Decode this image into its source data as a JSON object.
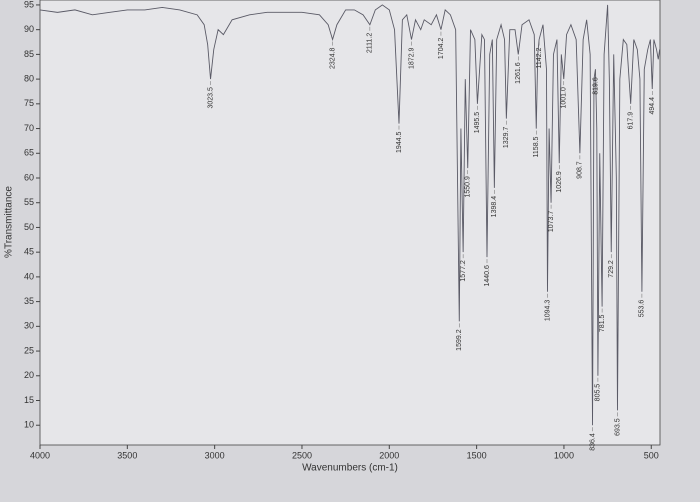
{
  "chart_data": {
    "type": "line",
    "x_label": "Wavenumbers (cm-1)",
    "y_label": "%Transmittance",
    "xlim": [
      4000,
      450
    ],
    "ylim": [
      6,
      96
    ],
    "xticks": [
      4000,
      3500,
      3000,
      2500,
      2000,
      1500,
      1000,
      500
    ],
    "yticks": [
      10,
      15,
      20,
      25,
      30,
      35,
      40,
      45,
      50,
      55,
      60,
      65,
      70,
      75,
      80,
      85,
      90,
      95
    ],
    "x": [
      4000,
      3900,
      3800,
      3700,
      3600,
      3500,
      3400,
      3300,
      3200,
      3100,
      3060,
      3040,
      3023.5,
      3005,
      2980,
      2950,
      2900,
      2800,
      2700,
      2600,
      2500,
      2400,
      2350,
      2324.8,
      2300,
      2250,
      2200,
      2150,
      2111.2,
      2080,
      2040,
      2000,
      1970,
      1944.5,
      1925,
      1900,
      1872.9,
      1850,
      1820,
      1800,
      1760,
      1730,
      1704.2,
      1680,
      1650,
      1620,
      1599.2,
      1590,
      1577.2,
      1565,
      1550.9,
      1535,
      1510,
      1495.5,
      1470,
      1455,
      1440.6,
      1425,
      1410,
      1398.4,
      1385,
      1360,
      1340,
      1329.7,
      1310,
      1280,
      1261.6,
      1240,
      1200,
      1170,
      1158.5,
      1150,
      1142.2,
      1120,
      1100,
      1094.3,
      1085,
      1073.7,
      1060,
      1040,
      1026.9,
      1015,
      1001,
      985,
      960,
      930,
      908.7,
      890,
      870,
      850,
      836.4,
      828,
      819.6,
      812,
      805.5,
      795,
      781.5,
      770,
      750,
      740,
      729.2,
      715,
      700,
      693.5,
      680,
      660,
      640,
      617.9,
      600,
      580,
      565,
      553.6,
      540,
      520,
      505,
      494.4,
      485,
      470,
      460,
      452
    ],
    "series": [
      {
        "color": "#5a5a66",
        "values": [
          94,
          93.5,
          94,
          93,
          93.5,
          94,
          94,
          94.5,
          94,
          93,
          91,
          87,
          80,
          86,
          90,
          89,
          92,
          93,
          93.5,
          93.5,
          93.5,
          93,
          91,
          88,
          91,
          94,
          94,
          93,
          91,
          94,
          95,
          94,
          90,
          71,
          92,
          93,
          88,
          92,
          90,
          92,
          91,
          93,
          90,
          94,
          93,
          90,
          31,
          70,
          45,
          80,
          62,
          90,
          88,
          75,
          89,
          88,
          44,
          85,
          88,
          58,
          88,
          91,
          88,
          72,
          90,
          90,
          85,
          91,
          92,
          89,
          70,
          85,
          88,
          91,
          82,
          37,
          70,
          55,
          85,
          88,
          63,
          85,
          80,
          89,
          91,
          88,
          65,
          88,
          92,
          85,
          10,
          80,
          82,
          70,
          20,
          65,
          34,
          85,
          95,
          80,
          45,
          85,
          60,
          13,
          80,
          88,
          87,
          75,
          88,
          86,
          80,
          37,
          82,
          86,
          88,
          78,
          88,
          86,
          84,
          86
        ]
      }
    ],
    "peaks": {
      "x": [
        3023.5,
        2324.8,
        2111.2,
        1944.5,
        1872.9,
        1704.2,
        1599.2,
        1577.2,
        1550.9,
        1495.5,
        1440.6,
        1398.4,
        1329.7,
        1261.6,
        1158.5,
        1142.2,
        1094.3,
        1073.7,
        1026.9,
        1001,
        908.7,
        836.4,
        819.6,
        805.5,
        781.5,
        729.2,
        693.5,
        617.9,
        553.6,
        494.4
      ],
      "y": [
        80,
        88,
        91,
        71,
        88,
        90,
        31,
        45,
        62,
        75,
        44,
        58,
        72,
        85,
        70,
        88,
        37,
        55,
        63,
        80,
        65,
        10,
        82,
        20,
        34,
        45,
        13,
        75,
        37,
        78
      ],
      "labels": [
        "3023.5",
        "2324.8",
        "2111.2",
        "1944.5",
        "1872.9",
        "1704.2",
        "1599.2",
        "1577.2",
        "1550.9",
        "1495.5",
        "1440.6",
        "1398.4",
        "1329.7",
        "1261.6",
        "1158.5",
        "1142.2",
        "1094.3",
        "1073.7",
        "1026.9",
        "1001.0",
        "908.7",
        "836.4",
        "819.6",
        "805.5",
        "781.5",
        "729.2",
        "693.5",
        "617.9",
        "553.6",
        "494.4"
      ]
    }
  }
}
